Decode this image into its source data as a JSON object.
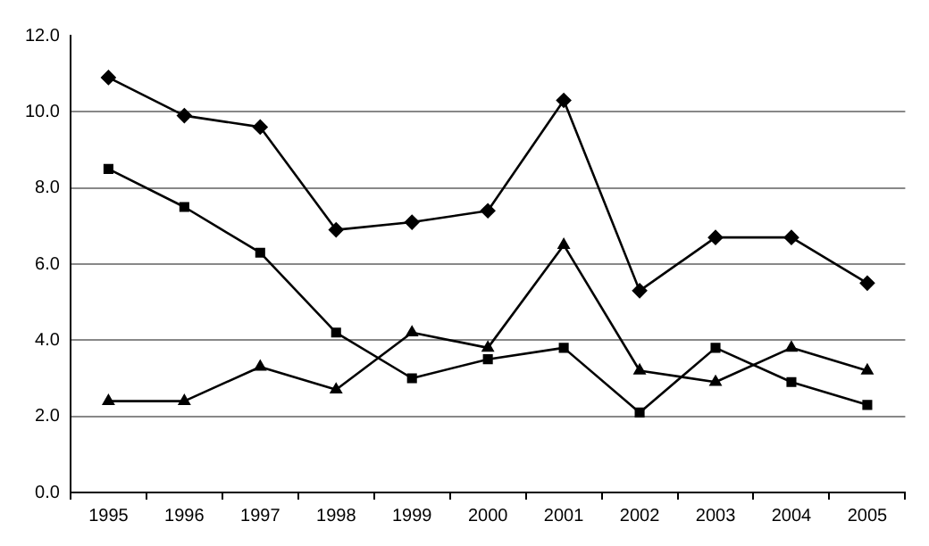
{
  "chart_data": {
    "type": "line",
    "categories": [
      "1995",
      "1996",
      "1997",
      "1998",
      "1999",
      "2000",
      "2001",
      "2002",
      "2003",
      "2004",
      "2005"
    ],
    "series": [
      {
        "color": "#000000",
        "marker": "diamond",
        "values": [
          10.9,
          9.9,
          9.6,
          6.9,
          7.1,
          7.4,
          10.3,
          5.3,
          6.7,
          6.7,
          5.5
        ]
      },
      {
        "color": "#000000",
        "marker": "square",
        "values": [
          8.5,
          7.5,
          6.3,
          4.2,
          3.0,
          3.5,
          3.8,
          2.1,
          3.8,
          2.9,
          2.3
        ]
      },
      {
        "color": "#000000",
        "marker": "triangle",
        "values": [
          2.4,
          2.4,
          3.3,
          2.7,
          4.2,
          3.8,
          6.5,
          3.2,
          2.9,
          3.8,
          3.2
        ]
      }
    ],
    "ylim": [
      0,
      12
    ],
    "yticks": [
      {
        "value": 0,
        "label": "0.0"
      },
      {
        "value": 2,
        "label": "2.0"
      },
      {
        "value": 4,
        "label": "4.0"
      },
      {
        "value": 6,
        "label": "6.0"
      },
      {
        "value": 8,
        "label": "8.0"
      },
      {
        "value": 10,
        "label": "10.0"
      },
      {
        "value": 12,
        "label": "12.0"
      }
    ],
    "grid": "y",
    "legend": false,
    "line_style": "solid"
  }
}
